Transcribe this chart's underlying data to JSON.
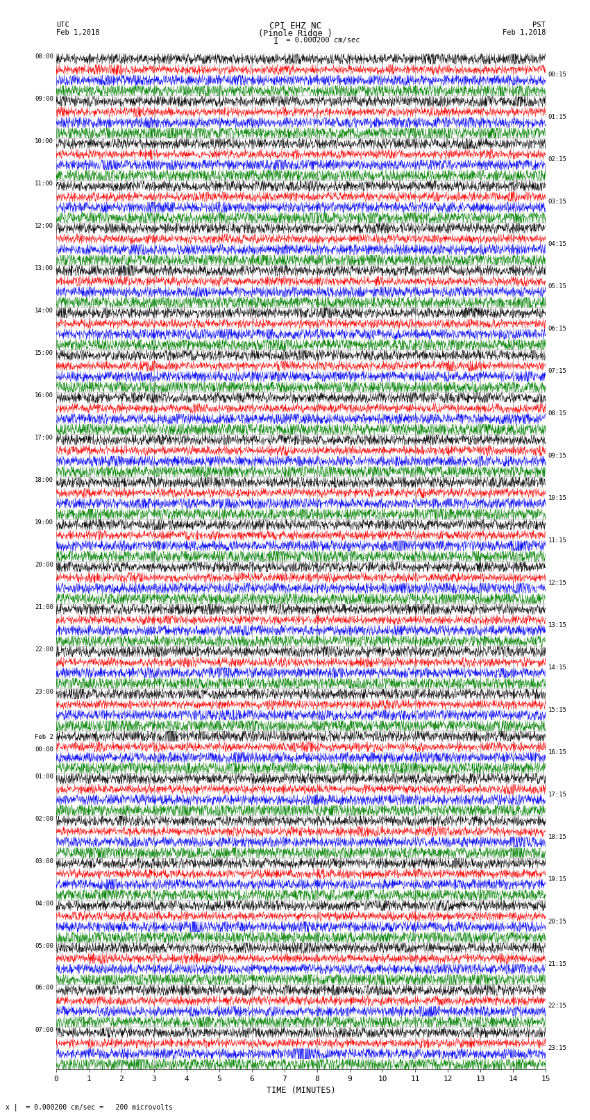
{
  "title_line1": "CPI EHZ NC",
  "title_line2": "(Pinole Ridge )",
  "scale_label": " = 0.000200 cm/sec",
  "bottom_label": "x |  = 0.000200 cm/sec =   200 microvolts",
  "xlabel": "TIME (MINUTES)",
  "left_header": "UTC",
  "left_date": "Feb 1,2018",
  "right_header": "PST",
  "right_date": "Feb 1,2018",
  "utc_times": [
    "08:00",
    "09:00",
    "10:00",
    "11:00",
    "12:00",
    "13:00",
    "14:00",
    "15:00",
    "16:00",
    "17:00",
    "18:00",
    "19:00",
    "20:00",
    "21:00",
    "22:00",
    "23:00",
    "Feb 2\n00:00",
    "01:00",
    "02:00",
    "03:00",
    "04:00",
    "05:00",
    "06:00",
    "07:00"
  ],
  "pst_times": [
    "00:15",
    "01:15",
    "02:15",
    "03:15",
    "04:15",
    "05:15",
    "06:15",
    "07:15",
    "08:15",
    "09:15",
    "10:15",
    "11:15",
    "12:15",
    "13:15",
    "14:15",
    "15:15",
    "16:15",
    "17:15",
    "18:15",
    "19:15",
    "20:15",
    "21:15",
    "22:15",
    "23:15"
  ],
  "colors": [
    "black",
    "red",
    "blue",
    "green"
  ],
  "n_hours": 24,
  "n_traces_per_hour": 4,
  "x_min": 0,
  "x_max": 15,
  "x_ticks": [
    0,
    1,
    2,
    3,
    4,
    5,
    6,
    7,
    8,
    9,
    10,
    11,
    12,
    13,
    14,
    15
  ],
  "fig_width": 8.5,
  "fig_height": 16.13,
  "dpi": 100,
  "bg_color": "white",
  "noise_scales": [
    0.28,
    0.22,
    0.28,
    0.35
  ],
  "grid_color": "#808080",
  "trace_lw": 0.35,
  "n_points": 1800
}
